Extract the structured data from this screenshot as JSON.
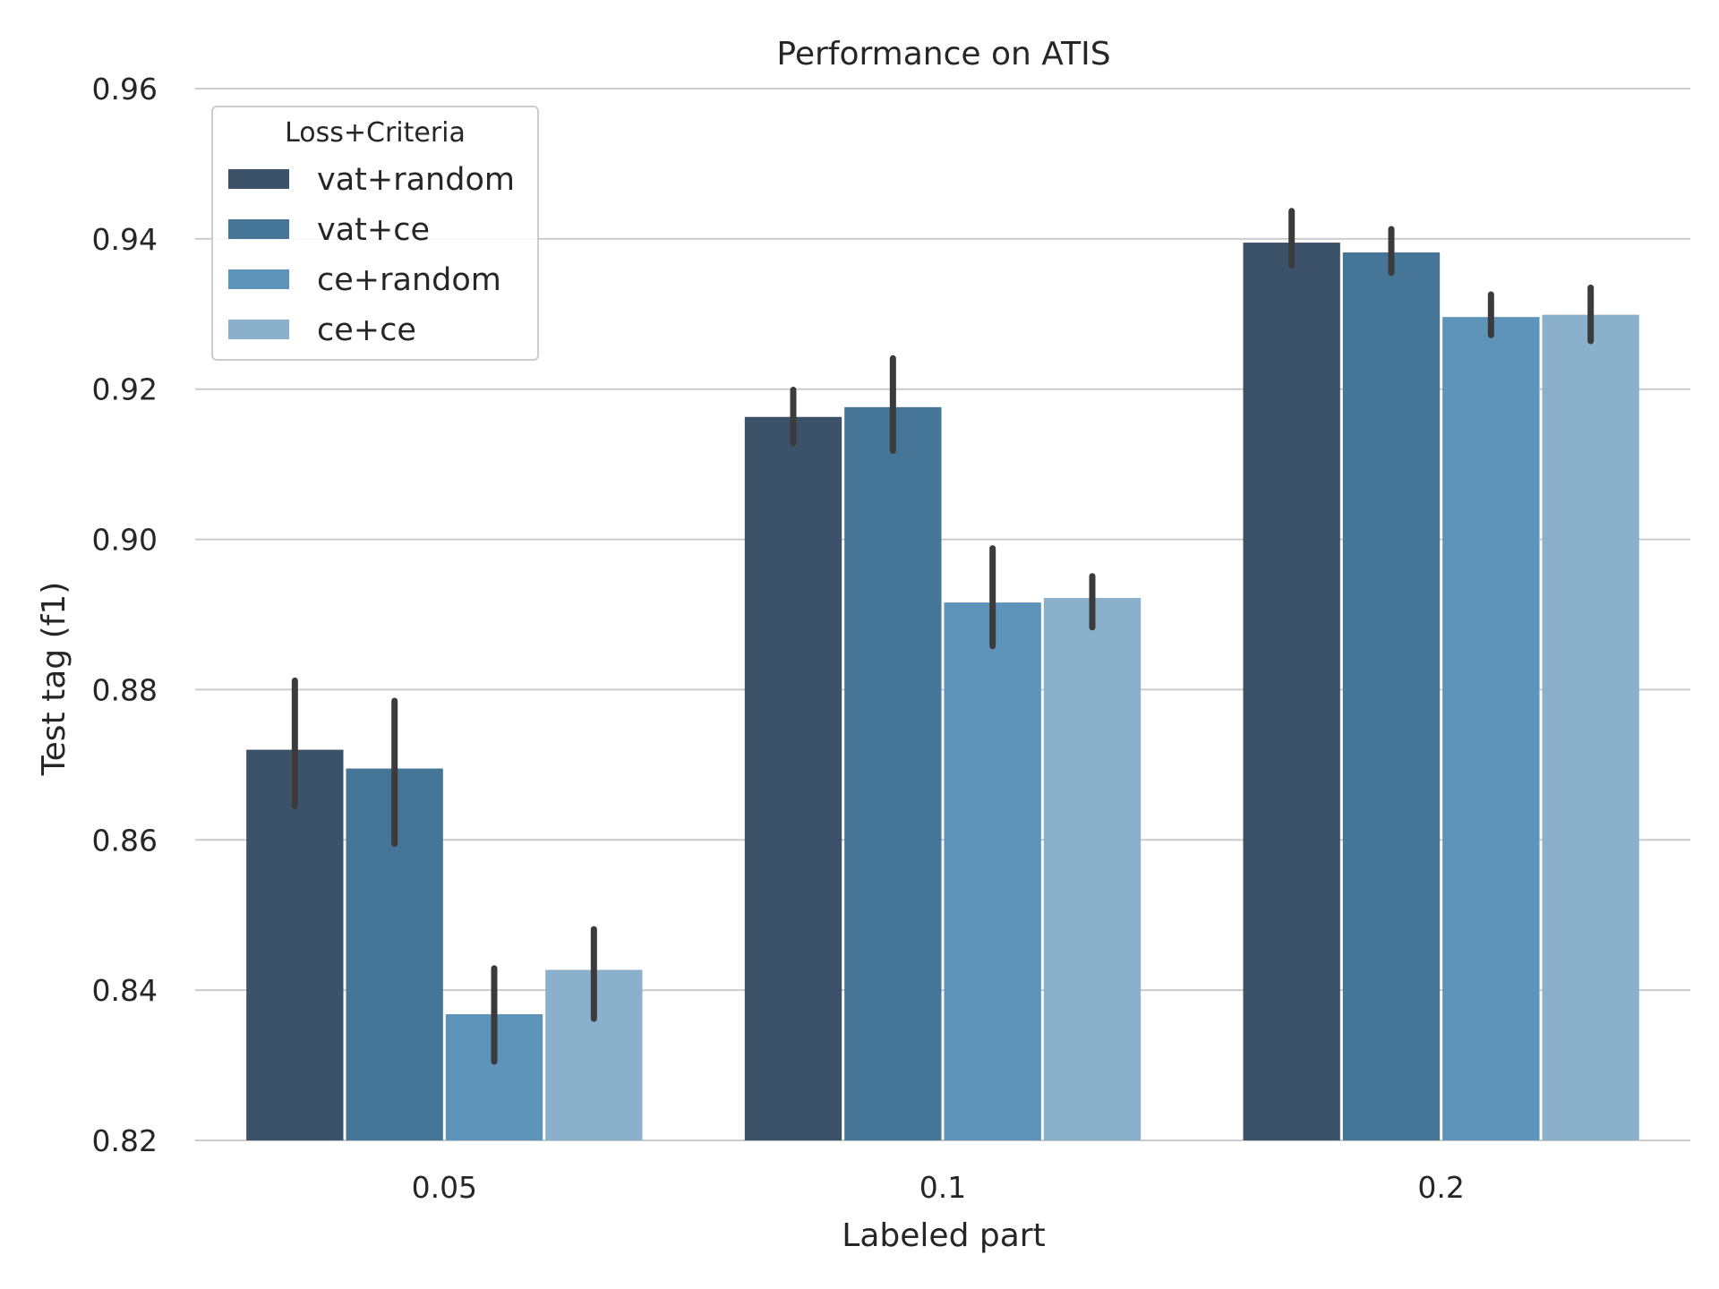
{
  "chart_data": {
    "type": "bar",
    "title": "Performance on ATIS",
    "xlabel": "Labeled part",
    "ylabel": "Test tag (f1)",
    "categories": [
      "0.05",
      "0.1",
      "0.2"
    ],
    "ylim": [
      0.82,
      0.96
    ],
    "yticks": [
      "0.82",
      "0.84",
      "0.86",
      "0.88",
      "0.90",
      "0.92",
      "0.94",
      "0.96"
    ],
    "grid": "horizontal",
    "legend": {
      "title": "Loss+Criteria",
      "placement": "top-left"
    },
    "series": [
      {
        "name": "vat+random",
        "color": "#3b5268",
        "values": [
          0.872,
          0.9163,
          0.9395
        ],
        "err_low": [
          0.8645,
          0.9128,
          0.9365
        ],
        "err_high": [
          0.8812,
          0.9199,
          0.9437
        ]
      },
      {
        "name": "vat+ce",
        "color": "#457597",
        "values": [
          0.8695,
          0.9176,
          0.9382
        ],
        "err_low": [
          0.8595,
          0.9118,
          0.9355
        ],
        "err_high": [
          0.8785,
          0.9241,
          0.9413
        ]
      },
      {
        "name": "ce+random",
        "color": "#5e93ba",
        "values": [
          0.8368,
          0.8916,
          0.9296
        ],
        "err_low": [
          0.8305,
          0.8858,
          0.9272
        ],
        "err_high": [
          0.8429,
          0.8988,
          0.9326
        ]
      },
      {
        "name": "ce+ce",
        "color": "#8ab0cb",
        "values": [
          0.8427,
          0.8922,
          0.9299
        ],
        "err_low": [
          0.8362,
          0.8883,
          0.9264
        ],
        "err_high": [
          0.8481,
          0.8951,
          0.9335
        ]
      }
    ]
  }
}
